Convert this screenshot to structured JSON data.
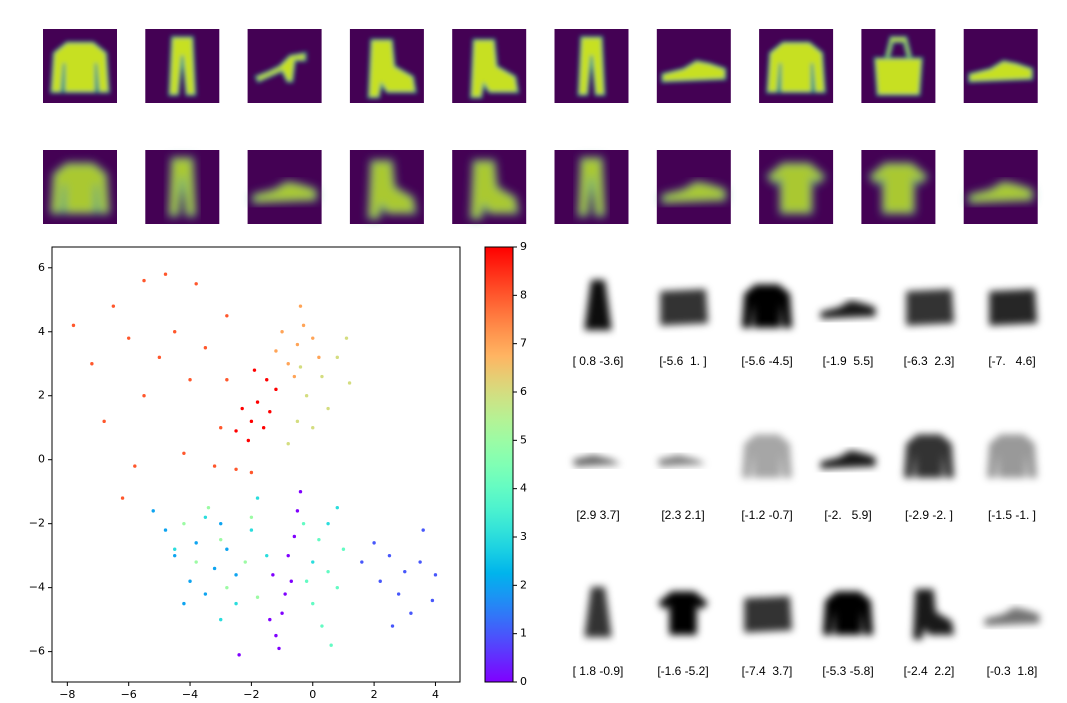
{
  "chart_data": {
    "type": "scatter",
    "colormap": "rainbow",
    "clim": [
      0,
      9
    ],
    "cticks": [
      0,
      1,
      2,
      3,
      4,
      5,
      6,
      7,
      8,
      9
    ],
    "xlim": [
      -8.5,
      4.8
    ],
    "ylim": [
      -6.95,
      6.65
    ],
    "xticks": [
      {
        "value": -8,
        "label": "−8"
      },
      {
        "value": -6,
        "label": "−6"
      },
      {
        "value": -4,
        "label": "−4"
      },
      {
        "value": -2,
        "label": "−2"
      },
      0,
      2,
      4
    ],
    "yticks": [
      {
        "value": -6,
        "label": "−6"
      },
      {
        "value": -4,
        "label": "−4"
      },
      {
        "value": -2,
        "label": "−2"
      },
      0,
      2,
      4,
      6
    ],
    "x": [
      -1.2,
      -1.0,
      -0.9,
      -1.3,
      -0.8,
      -0.6,
      -0.5,
      -1.1,
      -1.4,
      -0.7,
      -0.4,
      -2.4,
      2.0,
      2.5,
      3.0,
      3.5,
      2.8,
      3.2,
      2.2,
      4.0,
      3.6,
      1.6,
      2.6,
      3.9,
      -4.5,
      -3.8,
      -3.2,
      -4.0,
      -2.8,
      -3.5,
      -4.8,
      -2.5,
      -3.0,
      -4.2,
      -5.2,
      -3.5,
      -2.0,
      -1.5,
      0.5,
      -2.5,
      0.0,
      -3.0,
      -1.8,
      0.8,
      -4.5,
      0.2,
      0.5,
      0.0,
      0.3,
      0.8,
      -0.2,
      1.0,
      0.6,
      -0.3,
      -3.8,
      -3.0,
      -2.2,
      -4.2,
      -2.8,
      -1.8,
      -3.4,
      -2.0,
      -0.5,
      -0.2,
      0.3,
      0.8,
      -0.8,
      0.5,
      1.1,
      -0.4,
      0.0,
      1.2,
      -0.8,
      -0.5,
      -0.3,
      -1.0,
      -0.6,
      0.0,
      -1.2,
      -0.4,
      0.2,
      -7.8,
      -6.5,
      -5.5,
      -4.5,
      -5.0,
      -6.0,
      -3.5,
      -4.0,
      -5.5,
      -6.8,
      -3.0,
      -4.2,
      -3.2,
      -2.5,
      -2.0,
      -6.2,
      -7.2,
      -4.8,
      -3.8,
      -2.8,
      -5.8,
      -2.8,
      -1.8,
      -2.0,
      -1.5,
      -2.3,
      -1.6,
      -2.5,
      -1.2,
      -1.9,
      -2.1,
      -1.4
    ],
    "y": [
      -5.5,
      -4.8,
      -4.2,
      -3.6,
      -3.0,
      -2.4,
      -1.6,
      -5.9,
      -5.0,
      -3.8,
      -1.0,
      -6.1,
      -2.6,
      -3.0,
      -3.5,
      -3.2,
      -4.2,
      -4.8,
      -3.8,
      -3.6,
      -2.2,
      -3.2,
      -5.2,
      -4.4,
      -3.0,
      -2.6,
      -3.4,
      -3.8,
      -2.8,
      -4.2,
      -2.2,
      -3.6,
      -2.0,
      -4.5,
      -1.6,
      -1.8,
      -2.2,
      -3.0,
      -2.0,
      -4.5,
      -3.2,
      -5.0,
      -1.2,
      -1.5,
      -2.8,
      -2.5,
      -3.5,
      -4.5,
      -5.2,
      -4.0,
      -3.8,
      -2.8,
      -5.8,
      -2.0,
      -3.2,
      -2.5,
      -3.2,
      -2.0,
      -4.0,
      -4.3,
      -1.5,
      -1.8,
      1.2,
      2.0,
      2.6,
      3.2,
      0.5,
      1.6,
      3.8,
      2.9,
      1.0,
      2.4,
      3.0,
      3.6,
      4.2,
      4.0,
      2.6,
      3.8,
      3.4,
      4.8,
      3.2,
      4.2,
      4.8,
      5.6,
      4.0,
      3.2,
      3.8,
      3.5,
      2.5,
      2.0,
      1.2,
      1.0,
      0.2,
      -0.2,
      -0.3,
      -0.4,
      -1.2,
      3.0,
      5.8,
      5.5,
      4.5,
      -0.2,
      2.5,
      1.8,
      1.2,
      2.5,
      1.6,
      1.0,
      0.9,
      2.2,
      2.8,
      0.6,
      1.5
    ],
    "c": [
      0,
      0,
      0,
      0,
      0,
      0,
      0,
      0,
      0,
      0,
      0,
      0,
      1,
      1,
      1,
      1,
      1,
      1,
      1,
      1,
      1,
      1,
      1,
      1,
      2,
      2,
      2,
      2,
      2,
      2,
      2,
      2,
      2,
      2,
      2,
      3,
      3,
      3,
      3,
      3,
      3,
      3,
      3,
      3,
      3,
      4,
      4,
      4,
      4,
      4,
      4,
      4,
      4,
      4,
      5,
      5,
      5,
      5,
      5,
      5,
      5,
      5,
      6,
      6,
      6,
      6,
      6,
      6,
      6,
      6,
      6,
      6,
      7,
      7,
      7,
      7,
      7,
      7,
      7,
      7,
      7,
      8,
      8,
      8,
      8,
      8,
      8,
      8,
      8,
      8,
      8,
      8,
      8,
      8,
      8,
      8,
      8,
      8,
      8,
      8,
      8,
      8,
      8,
      9,
      9,
      9,
      9,
      9,
      9,
      9,
      9,
      9,
      9
    ]
  },
  "latent_samples": {
    "labels": [
      "[ 0.8 -3.6]",
      "[-5.6  1. ]",
      "[-5.6 -4.5]",
      "[-1.9  5.5]",
      "[-6.3  2.3]",
      "[-7.   4.6]",
      "[2.9 3.7]",
      "[2.3 2.1]",
      "[-1.2 -0.7]",
      "[-2.   5.9]",
      "[-2.9 -2. ]",
      "[-1.5 -1. ]",
      "[ 1.8 -0.9]",
      "[-1.6 -5.2]",
      "[-7.4  3.7]",
      "[-5.3 -5.8]",
      "[-2.4  2.2]",
      "[-0.3  1.8]"
    ]
  }
}
